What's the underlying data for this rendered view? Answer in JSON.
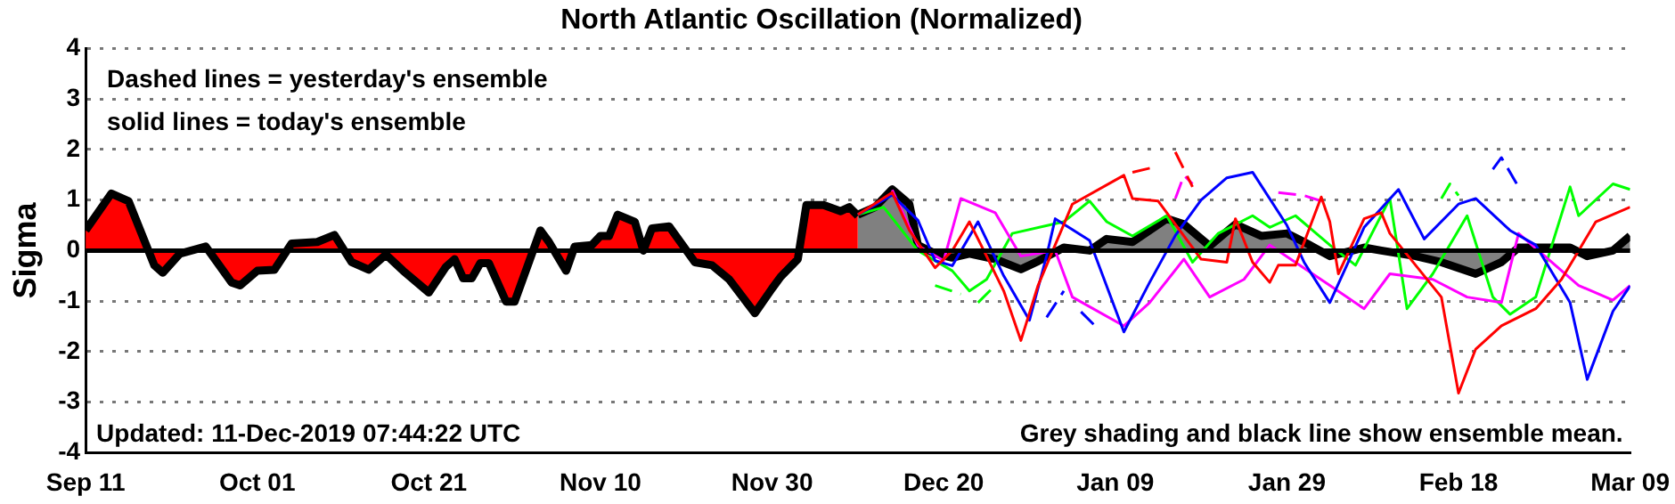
{
  "chart_data": {
    "type": "line",
    "title": "North Atlantic Oscillation (Normalized)",
    "ylabel": "Sigma",
    "annotations": [
      "Dashed lines = yesterday's ensemble",
      "solid lines = today's ensemble",
      "Updated: 11-Dec-2019 07:44:22 UTC",
      "Grey shading and black line show ensemble mean."
    ],
    "xlim": [
      "2019-09-11",
      "2020-03-09"
    ],
    "xticks": [
      {
        "value": "2019-09-11",
        "label": "Sep 11"
      },
      {
        "value": "2019-10-01",
        "label": "Oct 01"
      },
      {
        "value": "2019-10-21",
        "label": "Oct 21"
      },
      {
        "value": "2019-11-10",
        "label": "Nov 10"
      },
      {
        "value": "2019-11-30",
        "label": "Nov 30"
      },
      {
        "value": "2019-12-20",
        "label": "Dec 20"
      },
      {
        "value": "2020-01-09",
        "label": "Jan 09"
      },
      {
        "value": "2020-01-29",
        "label": "Jan 29"
      },
      {
        "value": "2020-02-18",
        "label": "Feb 18"
      },
      {
        "value": "2020-03-09",
        "label": "Mar 09"
      }
    ],
    "ylim": [
      -4,
      4
    ],
    "yticks": [
      -4,
      -3,
      -2,
      -1,
      0,
      1,
      2,
      3,
      4
    ],
    "grid": "y",
    "legend": false,
    "marker": "none",
    "ref_lines": [
      {
        "axis": "y",
        "value": 0,
        "color": "#000000"
      }
    ],
    "series": [
      {
        "type": "area",
        "color": "#ff0000",
        "x": [
          "2019-09-11",
          "2019-09-14",
          "2019-09-16",
          "2019-09-19",
          "2019-09-20",
          "2019-09-22",
          "2019-09-25",
          "2019-09-28",
          "2019-09-29",
          "2019-10-01",
          "2019-10-03",
          "2019-10-05",
          "2019-10-08",
          "2019-10-10",
          "2019-10-12",
          "2019-10-14",
          "2019-10-16",
          "2019-10-18",
          "2019-10-21",
          "2019-10-23",
          "2019-10-24",
          "2019-10-25",
          "2019-10-26",
          "2019-10-27",
          "2019-10-28",
          "2019-10-30",
          "2019-10-31",
          "2019-11-03",
          "2019-11-04",
          "2019-11-06",
          "2019-11-07",
          "2019-11-09",
          "2019-11-10",
          "2019-11-11",
          "2019-11-12",
          "2019-11-14",
          "2019-11-15",
          "2019-11-16",
          "2019-11-18",
          "2019-11-21",
          "2019-11-23",
          "2019-11-25",
          "2019-11-28",
          "2019-11-30",
          "2019-12-01",
          "2019-12-03",
          "2019-12-04",
          "2019-12-06",
          "2019-12-08",
          "2019-12-09",
          "2019-12-10"
        ],
        "values": [
          0.4,
          1.13,
          0.98,
          -0.29,
          -0.44,
          -0.06,
          0.08,
          -0.63,
          -0.69,
          -0.4,
          -0.38,
          0.14,
          0.17,
          0.31,
          -0.23,
          -0.38,
          -0.08,
          -0.4,
          -0.83,
          -0.32,
          -0.17,
          -0.55,
          -0.55,
          -0.25,
          -0.25,
          -1.01,
          -1.01,
          0.4,
          0.17,
          -0.4,
          0.08,
          0.11,
          0.29,
          0.29,
          0.71,
          0.57,
          0,
          0.44,
          0.48,
          -0.23,
          -0.29,
          -0.57,
          -1.24,
          -0.75,
          -0.52,
          -0.17,
          0.9,
          0.9,
          0.78,
          0.86,
          0.69
        ]
      },
      {
        "type": "area",
        "color": "#808080",
        "x": [
          "2019-12-10",
          "2019-12-12",
          "2019-12-14",
          "2019-12-16",
          "2019-12-17",
          "2019-12-19",
          "2019-12-21",
          "2019-12-23",
          "2019-12-26",
          "2019-12-29",
          "2019-12-31",
          "2020-01-03",
          "2020-01-06",
          "2020-01-08",
          "2020-01-11",
          "2020-01-15",
          "2020-01-17",
          "2020-01-20",
          "2020-01-23",
          "2020-01-26",
          "2020-01-29",
          "2020-01-31",
          "2020-02-03",
          "2020-02-07",
          "2020-02-09",
          "2020-02-13",
          "2020-02-16",
          "2020-02-20",
          "2020-02-23",
          "2020-02-25",
          "2020-02-29",
          "2020-03-02",
          "2020-03-04",
          "2020-03-07",
          "2020-03-09"
        ],
        "values": [
          0.71,
          0.86,
          1.21,
          0.92,
          0.11,
          -0.06,
          -0.14,
          -0.06,
          -0.17,
          -0.37,
          -0.21,
          0.06,
          0,
          0.23,
          0.17,
          0.63,
          0.52,
          0.09,
          0.52,
          0.29,
          0.34,
          0.17,
          -0.11,
          0.06,
          0,
          -0.11,
          -0.23,
          -0.46,
          -0.23,
          0.06,
          0.06,
          0.06,
          -0.11,
          0,
          0.29
        ]
      },
      {
        "color": "#ff0000",
        "x": [
          "2019-12-10",
          "2019-12-14",
          "2019-12-16",
          "2019-12-19",
          "2019-12-21",
          "2019-12-23",
          "2019-12-25",
          "2019-12-27",
          "2019-12-29",
          "2019-12-31",
          "2020-01-04",
          "2020-01-10",
          "2020-01-11",
          "2020-01-14",
          "2020-01-19",
          "2020-01-22",
          "2020-01-23",
          "2020-01-25",
          "2020-01-27",
          "2020-01-28",
          "2020-01-30",
          "2020-02-02",
          "2020-02-03",
          "2020-02-04",
          "2020-02-07",
          "2020-02-09",
          "2020-02-10",
          "2020-02-16",
          "2020-02-18",
          "2020-02-20",
          "2020-02-23",
          "2020-02-27",
          "2020-03-01",
          "2020-03-03",
          "2020-03-05",
          "2020-03-09"
        ],
        "values": [
          0.71,
          1.15,
          0.4,
          -0.34,
          0,
          0.57,
          -0.11,
          -0.8,
          -1.78,
          -0.69,
          0.92,
          1.49,
          1.03,
          0.98,
          -0.17,
          -0.23,
          0.63,
          -0.23,
          -0.63,
          -0.29,
          -0.29,
          1.06,
          0.57,
          -0.46,
          0.63,
          0.75,
          0.34,
          -0.92,
          -2.82,
          -1.95,
          -1.49,
          -1.15,
          -0.57,
          0,
          0.57,
          0.86
        ]
      },
      {
        "color": "#0000ff",
        "x": [
          "2019-12-10",
          "2019-12-14",
          "2019-12-17",
          "2019-12-19",
          "2019-12-21",
          "2019-12-24",
          "2019-12-27",
          "2019-12-30",
          "2020-01-01",
          "2020-01-02",
          "2020-01-06",
          "2020-01-10",
          "2020-01-13",
          "2020-01-16",
          "2020-01-19",
          "2020-01-22",
          "2020-01-25",
          "2020-01-29",
          "2020-01-31",
          "2020-02-03",
          "2020-02-07",
          "2020-02-11",
          "2020-02-14",
          "2020-02-18",
          "2020-02-20",
          "2020-02-24",
          "2020-02-27",
          "2020-02-29",
          "2020-03-02",
          "2020-03-04",
          "2020-03-07",
          "2020-03-09"
        ],
        "values": [
          0.71,
          1.1,
          0.6,
          -0.2,
          -0.3,
          0.57,
          -0.5,
          -1.38,
          -0.1,
          0.63,
          0.2,
          -1.61,
          -0.63,
          0.3,
          1.0,
          1.44,
          1.55,
          0.5,
          -0.23,
          -1.03,
          0.46,
          1.21,
          0.23,
          0.92,
          1.03,
          0.4,
          0.11,
          -0.46,
          -1.03,
          -2.55,
          -1.2,
          -0.7
        ]
      },
      {
        "color": "#ff00ff",
        "x": [
          "2019-12-14",
          "2019-12-17",
          "2019-12-20",
          "2019-12-22",
          "2019-12-26",
          "2019-12-29",
          "2020-01-02",
          "2020-01-04",
          "2020-01-10",
          "2020-01-13",
          "2020-01-17",
          "2020-01-20",
          "2020-01-24",
          "2020-01-27",
          "2020-02-03",
          "2020-02-07",
          "2020-02-10",
          "2020-02-15",
          "2020-02-19",
          "2020-02-23",
          "2020-02-25",
          "2020-03-03",
          "2020-03-07",
          "2020-03-09"
        ],
        "values": [
          1.2,
          0.1,
          -0.2,
          1.03,
          0.75,
          -0.11,
          0,
          -0.92,
          -1.49,
          -1.03,
          -0.17,
          -0.92,
          -0.57,
          0.11,
          -0.69,
          -1.15,
          -0.46,
          -0.57,
          -0.92,
          -1.03,
          0.34,
          -0.69,
          -0.98,
          -0.69
        ]
      },
      {
        "color": "#00ff00",
        "x": [
          "2019-12-10",
          "2019-12-13",
          "2019-12-17",
          "2019-12-21",
          "2019-12-23",
          "2019-12-25",
          "2019-12-28",
          "2020-01-03",
          "2020-01-06",
          "2020-01-08",
          "2020-01-11",
          "2020-01-15",
          "2020-01-18",
          "2020-01-21",
          "2020-01-25",
          "2020-01-27",
          "2020-01-30",
          "2020-02-03",
          "2020-02-06",
          "2020-02-10",
          "2020-02-12",
          "2020-02-15",
          "2020-02-19",
          "2020-02-22",
          "2020-02-24",
          "2020-02-27",
          "2020-03-02",
          "2020-03-03",
          "2020-03-07",
          "2020-03-09"
        ],
        "values": [
          0.71,
          0.86,
          0,
          -0.4,
          -0.8,
          -0.57,
          0.34,
          0.57,
          0.98,
          0.57,
          0.29,
          0.69,
          -0.23,
          0.34,
          0.69,
          0.46,
          0.69,
          0.11,
          -0.29,
          1.03,
          -1.15,
          -0.46,
          0.69,
          -0.92,
          -1.26,
          -0.92,
          1.26,
          0.69,
          1.32,
          1.21
        ]
      },
      {
        "color": "#ff0000",
        "line_style": "dashed",
        "x": [
          "2020-01-11",
          "2020-01-14",
          "2020-01-15",
          "2020-01-16",
          "2020-01-18"
        ],
        "values": [
          1.55,
          1.67,
          null,
          1.95,
          1.26
        ]
      },
      {
        "color": "#0000ff",
        "line_style": "dashed",
        "x": [
          "2020-01-01",
          "2020-01-03",
          "2020-01-04",
          "2020-01-05",
          "2020-01-07",
          "2020-02-10",
          "2020-02-22",
          "2020-02-23",
          "2020-02-25"
        ],
        "values": [
          -1.32,
          -0.8,
          null,
          -1.21,
          -1.55,
          null,
          1.61,
          1.84,
          1.26
        ]
      },
      {
        "color": "#00ff00",
        "line_style": "dashed",
        "x": [
          "2019-12-19",
          "2019-12-22",
          "2019-12-23",
          "2019-12-24",
          "2019-12-26",
          "2020-01-20",
          "2020-02-16",
          "2020-02-17",
          "2020-02-18"
        ],
        "values": [
          -0.69,
          -0.86,
          null,
          -1.03,
          -0.69,
          null,
          1.03,
          1.32,
          1.09
        ]
      },
      {
        "color": "#ff00ff",
        "line_style": "dashed",
        "x": [
          "2020-01-16",
          "2020-01-17",
          "2020-01-18",
          "2020-01-23",
          "2020-01-28",
          "2020-01-31",
          "2020-02-02"
        ],
        "values": [
          1.03,
          1.49,
          1.32,
          null,
          1.15,
          1.09,
          0.98
        ]
      }
    ]
  }
}
